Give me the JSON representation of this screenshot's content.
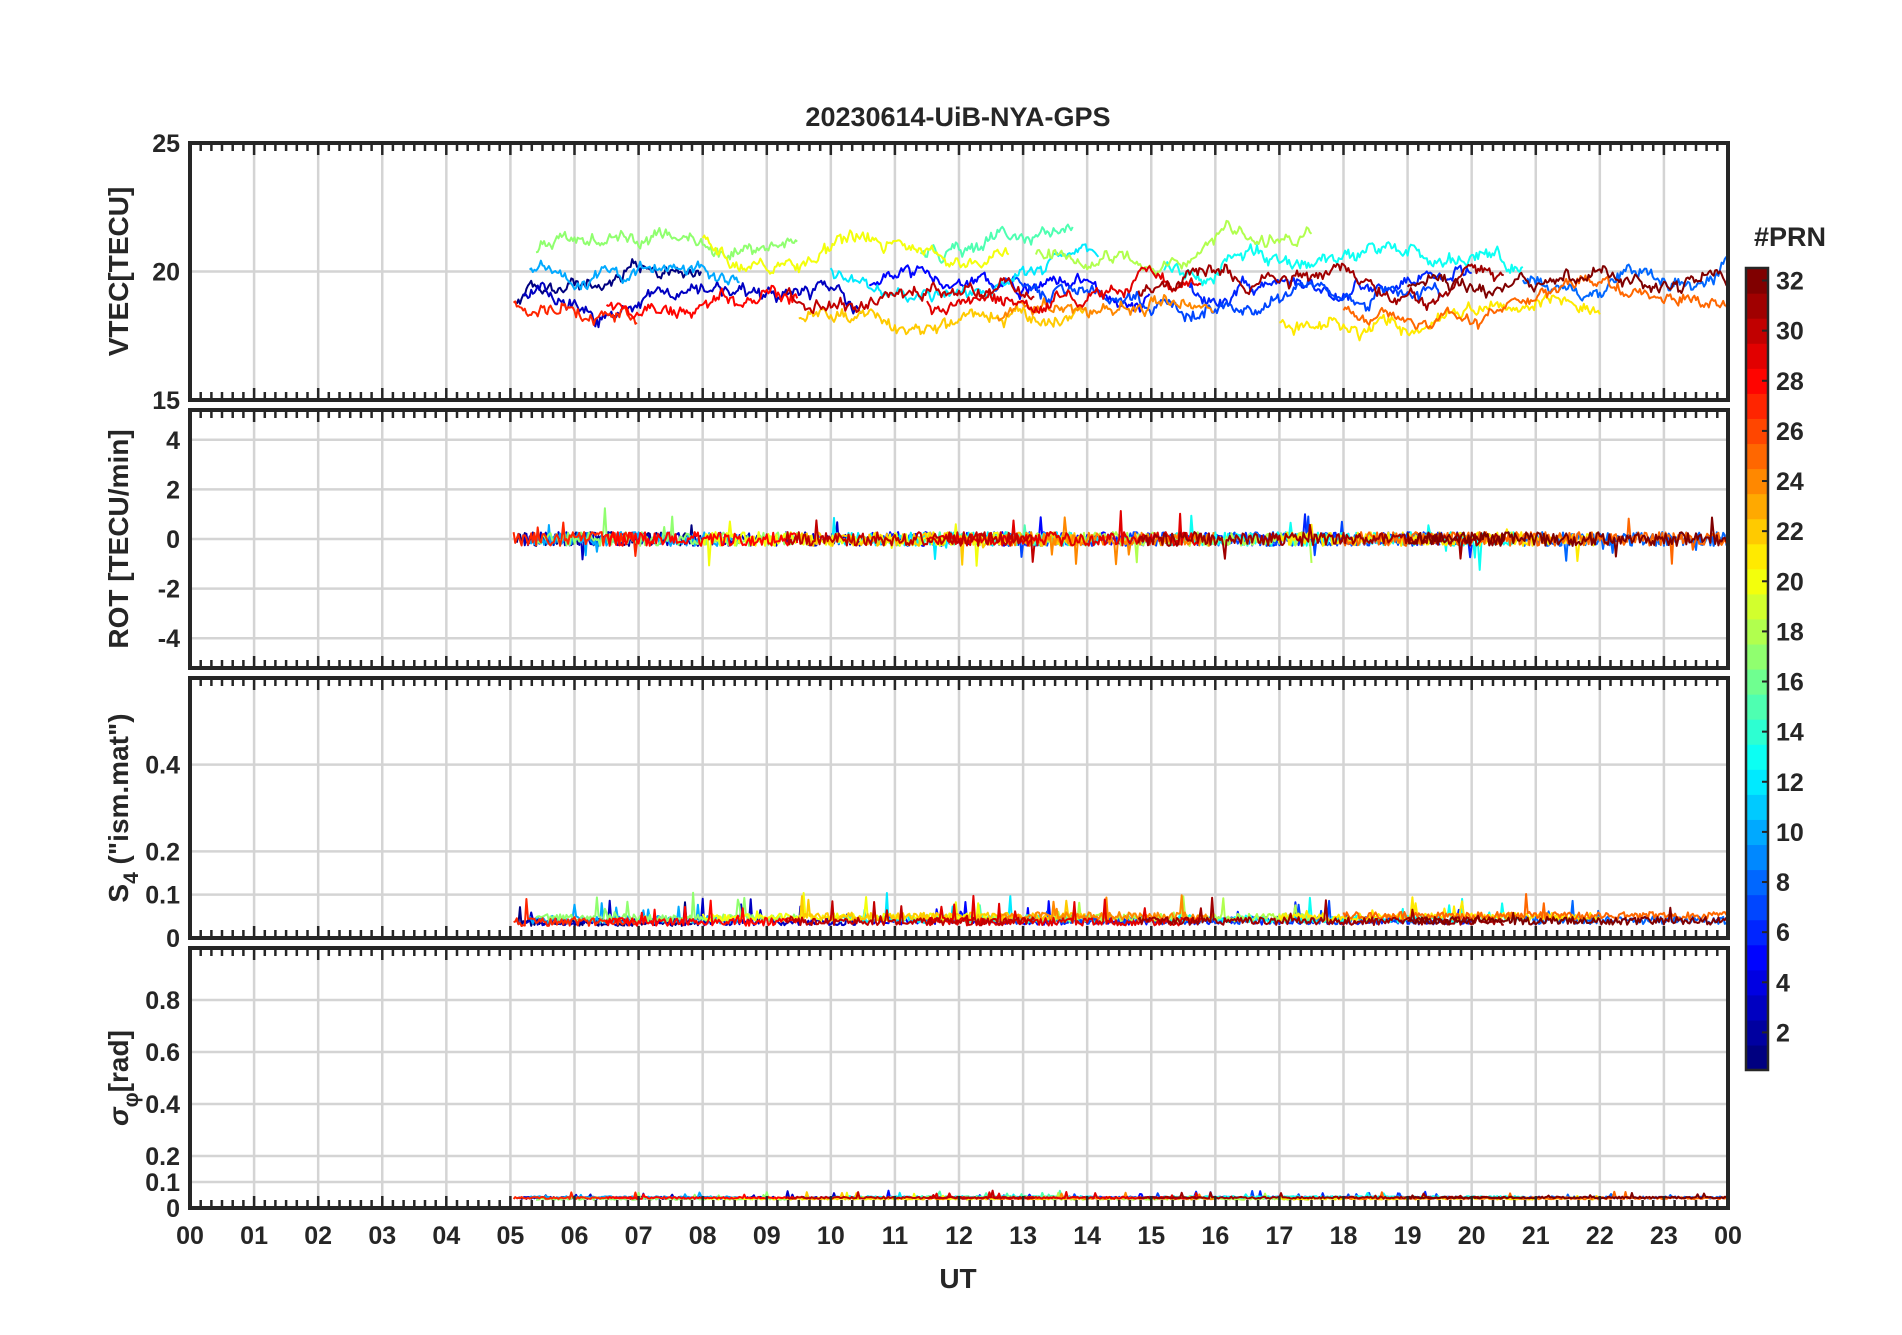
{
  "chart_data": {
    "type": "line",
    "title": "20230614-UiB-NYA-GPS",
    "xlabel": "UT",
    "x_unit": "hours UT",
    "xlim": [
      0,
      24
    ],
    "x_ticks": [
      "00",
      "01",
      "02",
      "03",
      "04",
      "05",
      "06",
      "07",
      "08",
      "09",
      "10",
      "11",
      "12",
      "13",
      "14",
      "15",
      "16",
      "17",
      "18",
      "19",
      "20",
      "21",
      "22",
      "23",
      "00"
    ],
    "data_start_ut": 5.05,
    "data_end_ut": 24,
    "grid": true,
    "colorbar": {
      "label": "#PRN",
      "colormap": "jet",
      "range": [
        1,
        32
      ],
      "ticks": [
        "2",
        "4",
        "6",
        "8",
        "10",
        "12",
        "14",
        "16",
        "18",
        "20",
        "22",
        "24",
        "26",
        "28",
        "30",
        "32"
      ]
    },
    "panels": [
      {
        "id": "vtec",
        "ylabel": "VTEC[TECU]",
        "ylim": [
          15,
          25
        ],
        "yticks": [
          "15",
          "20",
          "25"
        ],
        "baseline": 19.5,
        "spread": 1.6,
        "noise": 0.12
      },
      {
        "id": "rot",
        "ylabel": "ROT [TECU/min]",
        "ylim": [
          -5.2,
          5.2
        ],
        "yticks": [
          "-4",
          "-2",
          "0",
          "2",
          "4"
        ],
        "baseline": 0.0,
        "spread": 0.1,
        "noise": 0.28
      },
      {
        "id": "s4",
        "ylabel_base": "S",
        "ylabel_sub": "4",
        "ylabel_rest": " (\"ism.mat\")",
        "ylim": [
          0,
          0.6
        ],
        "yticks": [
          "0",
          "0.1",
          "0.2",
          "0.4"
        ],
        "baseline": 0.035,
        "spread": 0.008,
        "noise": 0.018
      },
      {
        "id": "sigphi",
        "ylabel_base": "σ",
        "ylabel_sub": "φ",
        "ylabel_rest": "[rad]",
        "ylim": [
          0,
          1
        ],
        "yticks": [
          "0",
          "0.1",
          "0.2",
          "0.4",
          "0.6",
          "0.8"
        ],
        "baseline": 0.035,
        "spread": 0.004,
        "noise": 0.008
      }
    ],
    "series": [
      {
        "prn": 1,
        "start": 5.1,
        "end": 8.0
      },
      {
        "prn": 3,
        "start": 5.2,
        "end": 10.5
      },
      {
        "prn": 5,
        "start": 10.6,
        "end": 15.0
      },
      {
        "prn": 6,
        "start": 15.6,
        "end": 20.0
      },
      {
        "prn": 7,
        "start": 12.5,
        "end": 19.5
      },
      {
        "prn": 8,
        "start": 20.8,
        "end": 24.0
      },
      {
        "prn": 10,
        "start": 5.3,
        "end": 8.6
      },
      {
        "prn": 12,
        "start": 10.0,
        "end": 14.2
      },
      {
        "prn": 13,
        "start": 15.2,
        "end": 20.8
      },
      {
        "prn": 15,
        "start": 11.4,
        "end": 13.8
      },
      {
        "prn": 17,
        "start": 5.4,
        "end": 9.5
      },
      {
        "prn": 18,
        "start": 13.2,
        "end": 17.5
      },
      {
        "prn": 20,
        "start": 8.0,
        "end": 12.8
      },
      {
        "prn": 21,
        "start": 17.0,
        "end": 22.0
      },
      {
        "prn": 22,
        "start": 9.5,
        "end": 14.0
      },
      {
        "prn": 24,
        "start": 12.6,
        "end": 16.0
      },
      {
        "prn": 25,
        "start": 18.0,
        "end": 24.0
      },
      {
        "prn": 27,
        "start": 5.05,
        "end": 7.0
      },
      {
        "prn": 28,
        "start": 6.5,
        "end": 9.5
      },
      {
        "prn": 29,
        "start": 11.5,
        "end": 15.8
      },
      {
        "prn": 30,
        "start": 9.3,
        "end": 13.2
      },
      {
        "prn": 31,
        "start": 14.8,
        "end": 20.5
      },
      {
        "prn": 32,
        "start": 19.0,
        "end": 24.0
      }
    ]
  }
}
